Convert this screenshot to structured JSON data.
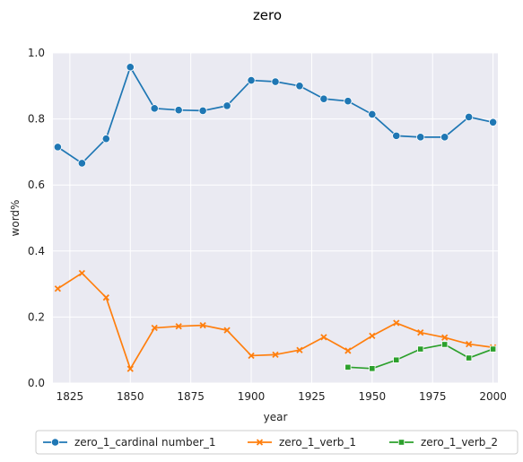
{
  "chart_data": {
    "type": "line",
    "title": "zero",
    "xlabel": "year",
    "ylabel": "word%",
    "xlim": [
      1818,
      2002
    ],
    "ylim": [
      0.0,
      1.0
    ],
    "xticks": [
      1825,
      1850,
      1875,
      1900,
      1925,
      1950,
      1975,
      2000
    ],
    "yticks": [
      0.0,
      0.2,
      0.4,
      0.6,
      0.8,
      1.0
    ],
    "grid": true,
    "legend_position": "bottom",
    "series": [
      {
        "name": "zero_1_cardinal number_1",
        "color": "#1f77b4",
        "marker": "circle",
        "x": [
          1820,
          1830,
          1840,
          1850,
          1860,
          1870,
          1880,
          1890,
          1900,
          1910,
          1920,
          1930,
          1940,
          1950,
          1960,
          1970,
          1980,
          1990,
          2000
        ],
        "y": [
          0.715,
          0.666,
          0.74,
          0.957,
          0.832,
          0.827,
          0.825,
          0.84,
          0.917,
          0.913,
          0.9,
          0.861,
          0.854,
          0.814,
          0.749,
          0.745,
          0.745,
          0.806,
          0.79
        ]
      },
      {
        "name": "zero_1_verb_1",
        "color": "#ff7f0e",
        "marker": "x",
        "x": [
          1820,
          1830,
          1840,
          1850,
          1860,
          1870,
          1880,
          1890,
          1900,
          1910,
          1920,
          1930,
          1940,
          1950,
          1960,
          1970,
          1980,
          1990,
          2000
        ],
        "y": [
          0.286,
          0.333,
          0.259,
          0.043,
          0.167,
          0.172,
          0.175,
          0.16,
          0.083,
          0.086,
          0.1,
          0.139,
          0.098,
          0.143,
          0.182,
          0.153,
          0.138,
          0.118,
          0.108
        ]
      },
      {
        "name": "zero_1_verb_2",
        "color": "#2ca02c",
        "marker": "square",
        "x": [
          1940,
          1950,
          1960,
          1970,
          1980,
          1990,
          2000
        ],
        "y": [
          0.048,
          0.044,
          0.07,
          0.103,
          0.117,
          0.076,
          0.103
        ]
      }
    ]
  }
}
